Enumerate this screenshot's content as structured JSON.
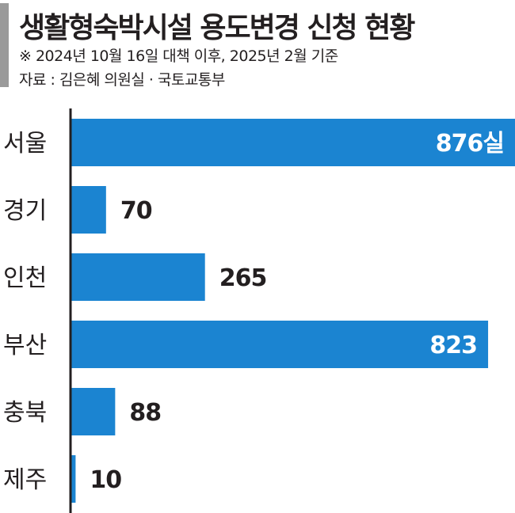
{
  "header": {
    "title": "생활형숙박시설 용도변경 신청 현황",
    "note": "※ 2024년 10월 16일 대책 이후, 2025년 2월 기준",
    "source": "자료 : 김은혜 의원실 · 국토교통부"
  },
  "colors": {
    "bar": "#1b84d1",
    "axis": "#231f20",
    "accent": "#9a9a9a"
  },
  "chart_data": {
    "type": "bar",
    "orientation": "horizontal",
    "categories": [
      "서울",
      "경기",
      "인천",
      "부산",
      "충북",
      "제주"
    ],
    "values": [
      876,
      70,
      265,
      823,
      88,
      10
    ],
    "value_labels": [
      "876실",
      "70",
      "265",
      "823",
      "88",
      "10"
    ],
    "xlim": [
      0,
      876
    ],
    "grid": false,
    "legend": "none"
  }
}
